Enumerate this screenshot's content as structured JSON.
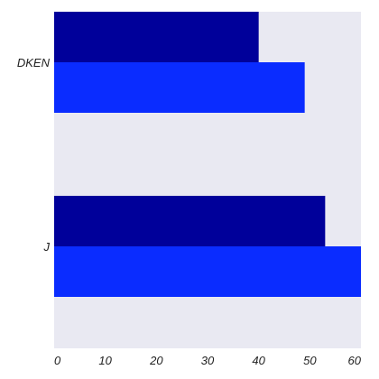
{
  "chart_data": {
    "type": "bar",
    "orientation": "horizontal",
    "categories": [
      "DKEN",
      "J"
    ],
    "series": [
      {
        "color": "#00009a",
        "values": [
          40,
          53
        ]
      },
      {
        "color": "#0a2cff",
        "values": [
          49,
          60
        ]
      }
    ],
    "title": "",
    "xlabel": "",
    "ylabel": "",
    "xlim": [
      0,
      60
    ],
    "xticks": [
      0,
      10,
      20,
      30,
      40,
      50,
      60
    ],
    "xtick_labels": [
      "0",
      "10",
      "20",
      "30",
      "40",
      "50",
      "60"
    ],
    "grid": false,
    "legend": "none",
    "background_color": "#e9e9f2"
  }
}
